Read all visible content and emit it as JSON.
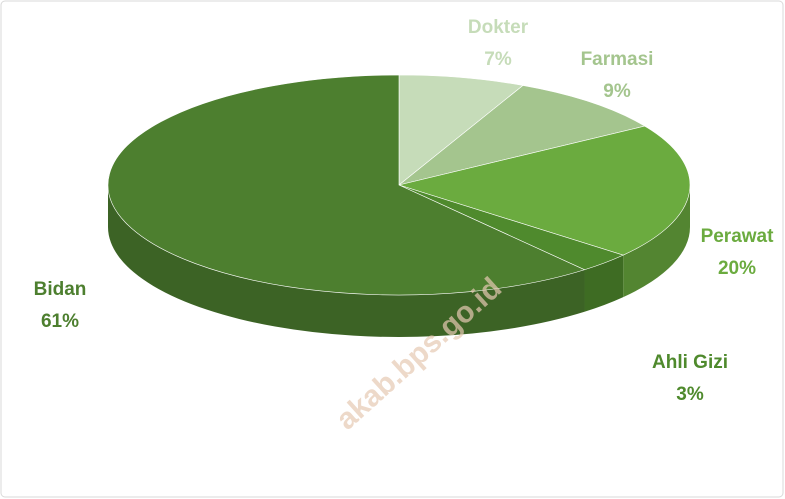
{
  "chart_data": {
    "type": "pie3d",
    "categories": [
      "Dokter",
      "Farmasi",
      "Perawat",
      "Ahli Gizi",
      "Bidan"
    ],
    "values": [
      7,
      9,
      20,
      3,
      61
    ],
    "value_labels": [
      "7%",
      "9%",
      "20%",
      "3%",
      "61%"
    ],
    "colors": [
      "#c6dcb9",
      "#a4c58e",
      "#6bab3f",
      "#4f8a2d",
      "#4d7f2f"
    ],
    "label_colors": [
      "#c6dcb9",
      "#a4c58e",
      "#6bab3f",
      "#4f8a2d",
      "#4d7f2f"
    ],
    "watermark": "akab.bps.go.id"
  }
}
